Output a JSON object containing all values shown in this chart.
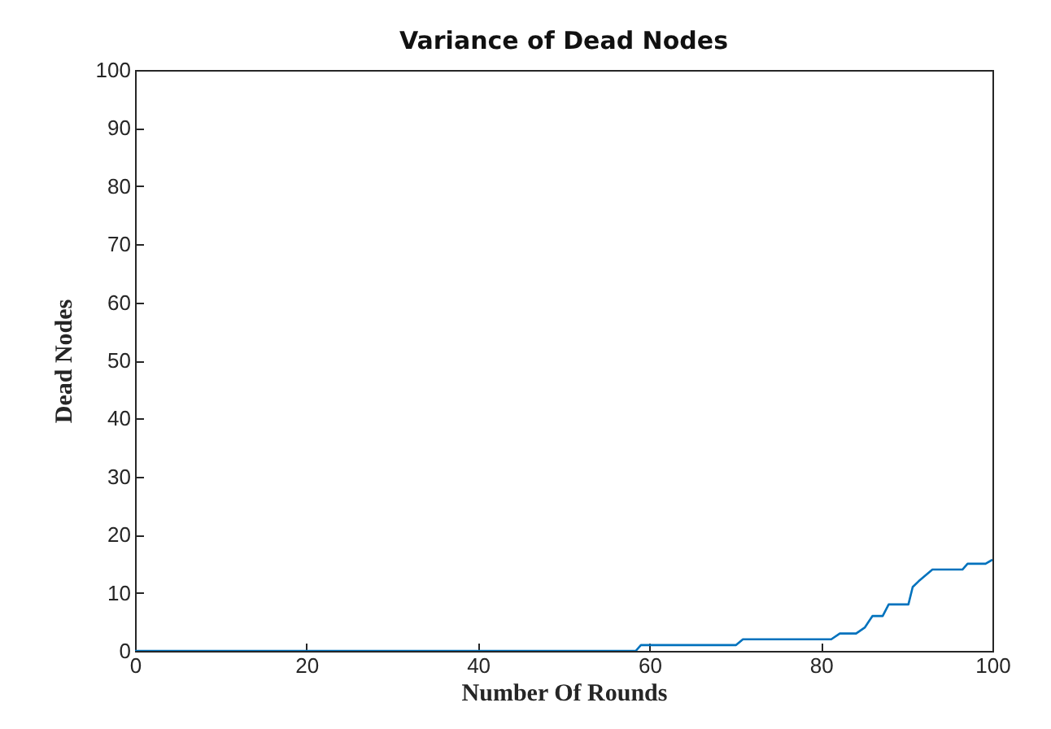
{
  "chart_data": {
    "type": "line",
    "title": "Variance of Dead Nodes",
    "xlabel": "Number Of Rounds",
    "ylabel": "Dead Nodes",
    "x": [
      0,
      58.4,
      59,
      70.1,
      70.9,
      81.2,
      82.2,
      84.1,
      85.1,
      86,
      87.2,
      87.9,
      90.2,
      90.7,
      91.4,
      93,
      96.5,
      97.1,
      99.2,
      100
    ],
    "series": [
      {
        "color": "#0072bd",
        "values": [
          0,
          0,
          1,
          1,
          2,
          2,
          3,
          3,
          4,
          6,
          6,
          8,
          8,
          11,
          12,
          14,
          14,
          15,
          15,
          15.7
        ]
      }
    ],
    "xlim": [
      0,
      100
    ],
    "ylim": [
      0,
      100
    ],
    "xticks": [
      0,
      20,
      40,
      60,
      80,
      100
    ],
    "yticks": [
      0,
      10,
      20,
      30,
      40,
      50,
      60,
      70,
      80,
      90,
      100
    ],
    "grid": false,
    "marker": "none",
    "line_style": "solid"
  }
}
